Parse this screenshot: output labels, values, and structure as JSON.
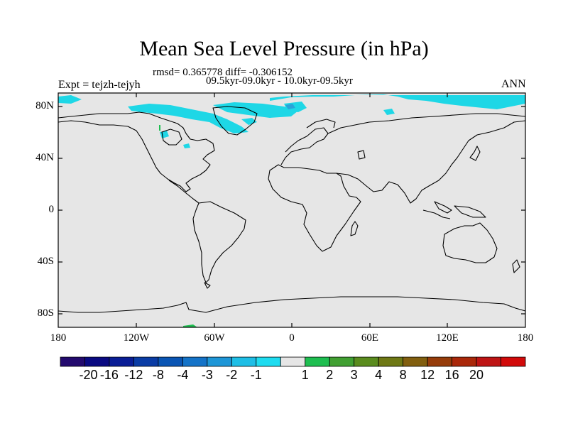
{
  "title": "Mean Sea Level Pressure (in hPa)",
  "stats": "rmsd= 0.365778 diff= -0.306152",
  "periods": "09.5kyr-09.0kyr - 10.0kyr-09.5kyr",
  "expt": "Expt = tejzh-tejyh",
  "season": "ANN",
  "colors": {
    "background_field": "#e6e6e6",
    "negative_anomaly": "#1ed7e6",
    "negative_anomaly_deep": "#2aa4d9",
    "coastline": "#000000"
  },
  "lat_labels": [
    "80N",
    "40N",
    "0",
    "40S",
    "80S"
  ],
  "lon_labels": [
    "180",
    "120W",
    "60W",
    "0",
    "60E",
    "120E",
    "180"
  ],
  "colorbar": {
    "colors": [
      "#230a6e",
      "#0a0a82",
      "#0a1e96",
      "#0a3ca5",
      "#0a55b4",
      "#1473c8",
      "#1e96d7",
      "#1ebee6",
      "#1edcf0",
      "#e6e6e6",
      "#1ebe50",
      "#41a032",
      "#5a8c1e",
      "#6e7814",
      "#825f0f",
      "#963c0a",
      "#aa280a",
      "#be1414",
      "#d20a0a"
    ],
    "labels": [
      "-20",
      "-16",
      "-12",
      "-8",
      "-4",
      "-3",
      "-2",
      "-1",
      "1",
      "2",
      "3",
      "4",
      "8",
      "12",
      "16",
      "20"
    ]
  }
}
